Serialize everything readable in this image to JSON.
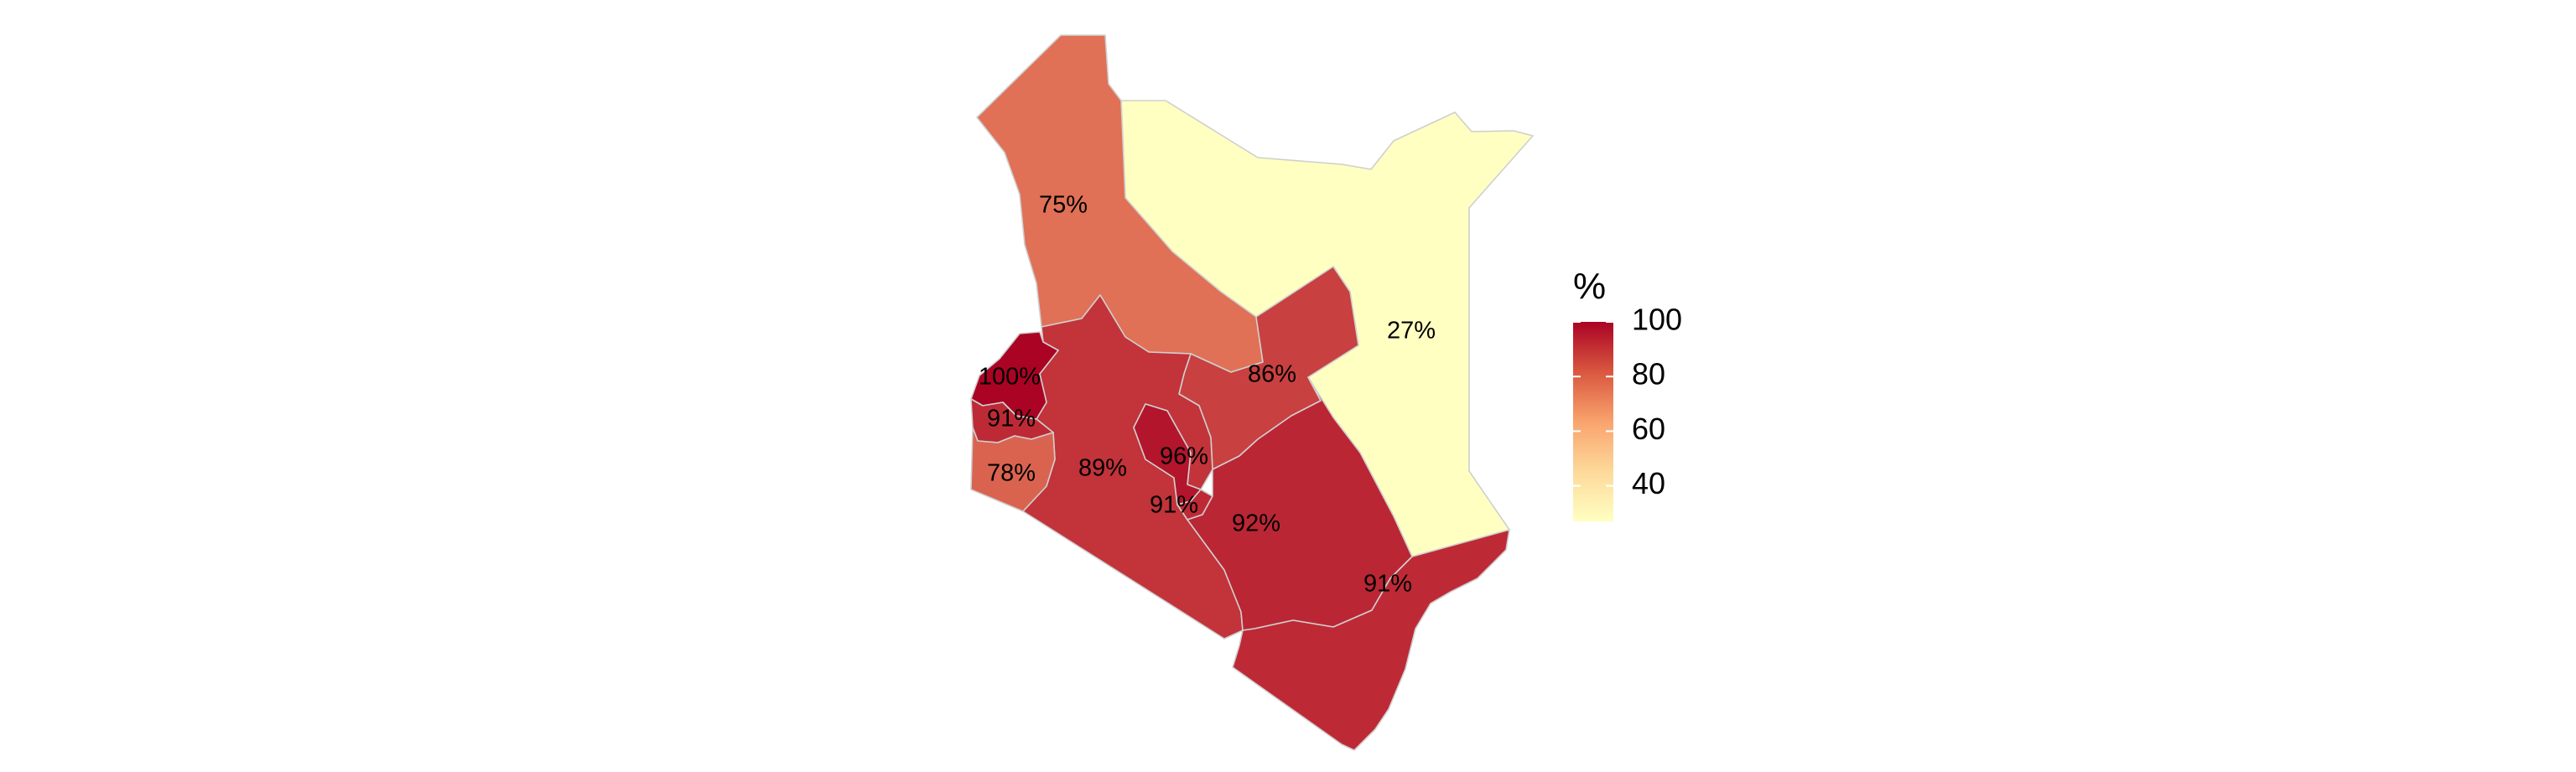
{
  "map": {
    "regions": [
      {
        "id": "north-west",
        "value": 75,
        "label": "75%"
      },
      {
        "id": "north-east",
        "value": 27,
        "label": "27%"
      },
      {
        "id": "upper-central",
        "value": 86,
        "label": "86%"
      },
      {
        "id": "west-small",
        "value": 100,
        "label": "100%"
      },
      {
        "id": "west-middle",
        "value": 91,
        "label": "91%"
      },
      {
        "id": "south-west",
        "value": 78,
        "label": "78%"
      },
      {
        "id": "rift-south",
        "value": 89,
        "label": "89%"
      },
      {
        "id": "central",
        "value": 96,
        "label": "96%"
      },
      {
        "id": "nairobi",
        "value": 91,
        "label": "91%"
      },
      {
        "id": "eastern",
        "value": 92,
        "label": "92%"
      },
      {
        "id": "coast",
        "value": 91,
        "label": "91%"
      }
    ]
  },
  "legend": {
    "title": "%",
    "ticks": [
      {
        "value": 100,
        "label": "100"
      },
      {
        "value": 80,
        "label": "80"
      },
      {
        "value": 60,
        "label": "60"
      },
      {
        "value": 40,
        "label": "40"
      }
    ],
    "range": [
      27,
      100
    ],
    "colors": {
      "low": "#FFFFC2",
      "mid": "#F9A36D",
      "high": "#AA0324"
    }
  }
}
